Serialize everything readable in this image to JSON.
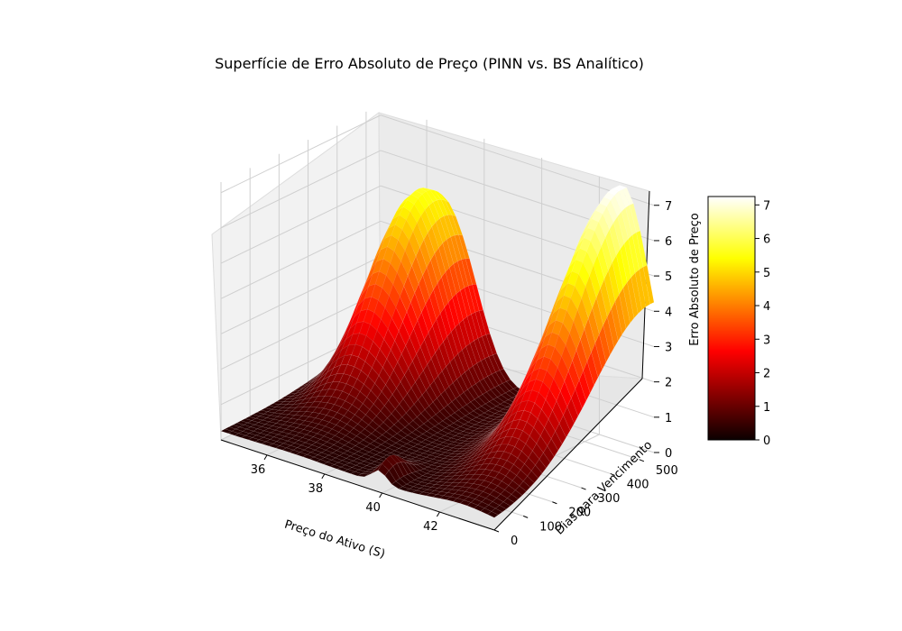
{
  "chart_data": {
    "type": "surface",
    "title": "Superfície de Erro Absoluto de Preço (PINN vs. BS Analítico)",
    "xlabel": "Preço do Ativo (S)",
    "ylabel": "Dias para Vencimento",
    "zlabel": "Erro Absoluto de Preço",
    "xlim": [
      34.4,
      43.9
    ],
    "ylim": [
      0,
      550
    ],
    "zlim": [
      0,
      7.3
    ],
    "x_ticks": [
      "36",
      "38",
      "40",
      "42"
    ],
    "y_ticks": [
      "0",
      "100",
      "200",
      "300",
      "400",
      "500"
    ],
    "z_ticks": [
      "0",
      "1",
      "2",
      "3",
      "4",
      "5",
      "6",
      "7"
    ],
    "colormap": "hot",
    "colorbar": {
      "min": 0,
      "max": 7.25,
      "ticks": [
        "0",
        "1",
        "2",
        "3",
        "4",
        "5",
        "6",
        "7"
      ]
    },
    "grid": true,
    "surface_peaks": [
      {
        "x": 42.8,
        "y": 540,
        "z": 7.2
      },
      {
        "x": 37.0,
        "y": 520,
        "z": 4.1
      },
      {
        "x": 35.9,
        "y": 470,
        "z": 2.9
      },
      {
        "x": 39.9,
        "y": 40,
        "z": 0.6
      }
    ]
  }
}
